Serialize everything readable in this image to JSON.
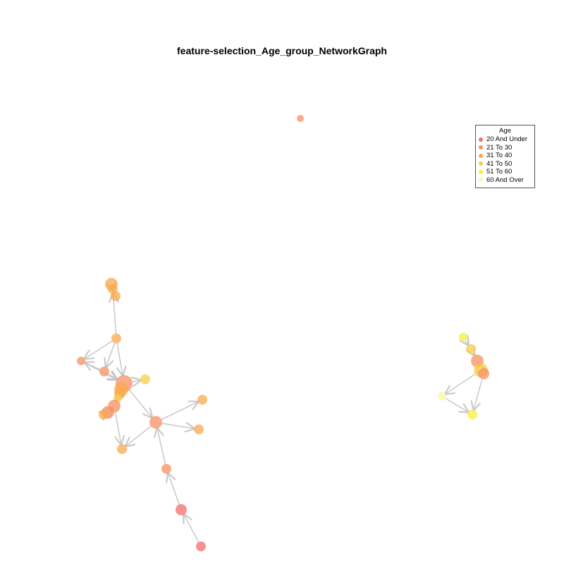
{
  "title": "feature-selection_Age_group_NetworkGraph",
  "legend": {
    "title": "Age",
    "items": [
      {
        "label": "20 And Under",
        "color": "#f46d6d"
      },
      {
        "label": "21 To 30",
        "color": "#f79063"
      },
      {
        "label": "31 To 40",
        "color": "#f9a94c"
      },
      {
        "label": "41 To 50",
        "color": "#f8cc4a"
      },
      {
        "label": "51 To 60",
        "color": "#f8ef3c"
      },
      {
        "label": "60 And Over",
        "color": "#fbf7a0"
      }
    ]
  },
  "edge_color": "#c8c8c8",
  "node_colors": [
    "#f46d6d",
    "#f79063",
    "#f9a94c",
    "#f8cc4a",
    "#f8ef3c",
    "#fbf7a0"
  ]
}
